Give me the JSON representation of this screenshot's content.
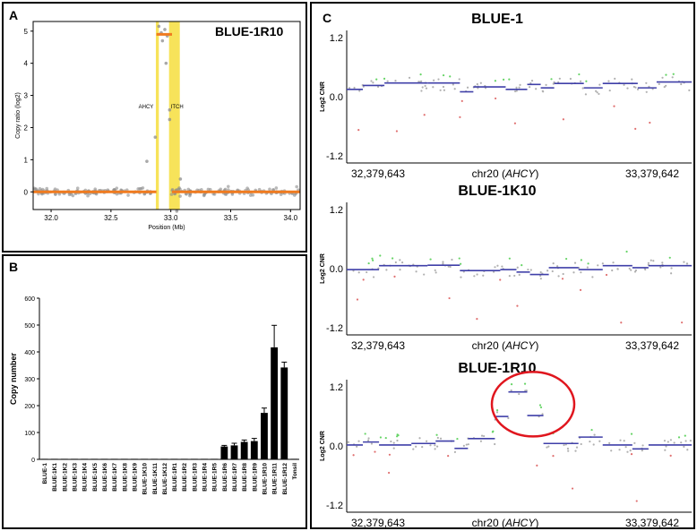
{
  "panels": {
    "a": {
      "letter": "A",
      "chart_data": {
        "type": "scatter",
        "title": "BLUE-1R10",
        "xlabel": "Position (Mb)",
        "ylabel": "Copy ratio (log2)",
        "xlim": [
          31.85,
          34.08
        ],
        "ylim": [
          -0.55,
          5.3
        ],
        "xticks": [
          "32.0",
          "32.5",
          "33.0",
          "33.5",
          "34.0"
        ],
        "yticks": [
          "0",
          "1",
          "2",
          "3",
          "4",
          "5"
        ],
        "gene_labels": [
          "AHCY",
          "ITCH"
        ],
        "highlight_regions": [
          [
            32.875,
            32.9
          ],
          [
            32.985,
            33.075
          ]
        ],
        "highlight_color": "#f7e35a",
        "segments": [
          {
            "x0": 31.85,
            "x1": 32.88,
            "y": 0.0
          },
          {
            "x0": 32.88,
            "x1": 33.01,
            "y": 4.9
          },
          {
            "x0": 33.01,
            "x1": 34.08,
            "y": 0.0
          }
        ],
        "segment_color": "#f07b1f",
        "point_color": "#8c8c8c",
        "points": [
          {
            "x": 32.9,
            "y": 5.15
          },
          {
            "x": 32.92,
            "y": 4.95
          },
          {
            "x": 32.95,
            "y": 5.05
          },
          {
            "x": 32.97,
            "y": 4.85
          },
          {
            "x": 32.93,
            "y": 4.7
          },
          {
            "x": 32.96,
            "y": 4.0
          },
          {
            "x": 32.99,
            "y": 2.55
          },
          {
            "x": 32.99,
            "y": 2.25
          },
          {
            "x": 32.8,
            "y": 0.95
          },
          {
            "x": 32.87,
            "y": 1.7
          },
          {
            "x": 33.08,
            "y": 0.4
          },
          {
            "x": 33.05,
            "y": -0.6
          }
        ]
      }
    },
    "b": {
      "letter": "B",
      "chart_data": {
        "type": "bar",
        "xlabel": "",
        "ylabel": "Copy number",
        "ylim": [
          0,
          600
        ],
        "yticks": [
          "0",
          "100",
          "200",
          "300",
          "400",
          "500",
          "600"
        ],
        "categories": [
          "BLUE-1",
          "BLUE-1K1",
          "BLUE-1K2",
          "BLUE-1K3",
          "BLUE-1K4",
          "BLUE-1K5",
          "BLUE-1K6",
          "BLUE-1K7",
          "BLUE-1K8",
          "BLUE-1K9",
          "BLUE-1K10",
          "BLUE-1K11",
          "BLUE-1K12",
          "BLUE-1R1",
          "BLUE-1R2",
          "BLUE-1R3",
          "BLUE-1R4",
          "BLUE-1R5",
          "BLUE-1R6",
          "BLUE-1R7",
          "BLUE-1R8",
          "BLUE-1R9",
          "BLUE-1R10",
          "BLUE-1R11",
          "BLUE-1R12",
          "Tonsil"
        ],
        "values": [
          2,
          2,
          2,
          2,
          2,
          2,
          2,
          2,
          2,
          2,
          2,
          2,
          2,
          2,
          2,
          2,
          2,
          2,
          48,
          52,
          65,
          68,
          173,
          417,
          342,
          2
        ],
        "errors": [
          0,
          0,
          0,
          0,
          0,
          0,
          0,
          0,
          0,
          0,
          0,
          0,
          0,
          0,
          0,
          0,
          0,
          0,
          4,
          8,
          7,
          10,
          18,
          82,
          20,
          0
        ],
        "bar_color": "#000000"
      }
    },
    "c": {
      "letter": "C",
      "tracks": [
        {
          "chart_data": {
            "type": "scatter",
            "title": "BLUE-1",
            "ylabel": "Log2 CNR",
            "ylim": [
              -1.35,
              1.35
            ],
            "yticks": [
              "1.2",
              "0.0",
              "-1.2"
            ],
            "x_left_label": "32,379,643",
            "x_mid_label": "chr20 (",
            "x_mid_gene": "AHCY",
            "x_mid_close": ")",
            "x_right_label": "33,379,642",
            "segments": [
              {
                "x0": 0.0,
                "x1": 0.06,
                "y": 0.15
              },
              {
                "x0": 0.06,
                "x1": 0.14,
                "y": 0.23
              },
              {
                "x0": 0.14,
                "x1": 0.3,
                "y": 0.28
              },
              {
                "x0": 0.3,
                "x1": 0.42,
                "y": 0.28
              },
              {
                "x0": 0.42,
                "x1": 0.47,
                "y": 0.1
              },
              {
                "x0": 0.47,
                "x1": 0.59,
                "y": 0.2
              },
              {
                "x0": 0.59,
                "x1": 0.67,
                "y": 0.15
              },
              {
                "x0": 0.67,
                "x1": 0.72,
                "y": 0.25
              },
              {
                "x0": 0.72,
                "x1": 0.77,
                "y": 0.18
              },
              {
                "x0": 0.77,
                "x1": 0.88,
                "y": 0.27
              },
              {
                "x0": 0.88,
                "x1": 0.95,
                "y": 0.18
              },
              {
                "x0": 0.95,
                "x1": 1.08,
                "y": 0.27
              },
              {
                "x0": 1.08,
                "x1": 1.15,
                "y": 0.18
              },
              {
                "x0": 1.15,
                "x1": 1.28,
                "y": 0.3
              }
            ],
            "highlight": false
          }
        },
        {
          "chart_data": {
            "type": "scatter",
            "title": "BLUE-1K10",
            "ylabel": "Log2 CNR",
            "ylim": [
              -1.35,
              1.35
            ],
            "yticks": [
              "1.2",
              "0.0",
              "-1.2"
            ],
            "x_left_label": "32,379,643",
            "x_mid_label": "chr20 (",
            "x_mid_gene": "AHCY",
            "x_mid_close": ")",
            "x_right_label": "33,379,642",
            "segments": [
              {
                "x0": 0.0,
                "x1": 0.12,
                "y": -0.02
              },
              {
                "x0": 0.12,
                "x1": 0.3,
                "y": 0.06
              },
              {
                "x0": 0.3,
                "x1": 0.42,
                "y": 0.07
              },
              {
                "x0": 0.42,
                "x1": 0.57,
                "y": -0.04
              },
              {
                "x0": 0.57,
                "x1": 0.63,
                "y": -0.02
              },
              {
                "x0": 0.63,
                "x1": 0.68,
                "y": -0.07
              },
              {
                "x0": 0.68,
                "x1": 0.75,
                "y": -0.12
              },
              {
                "x0": 0.75,
                "x1": 0.86,
                "y": 0.02
              },
              {
                "x0": 0.86,
                "x1": 0.95,
                "y": -0.02
              },
              {
                "x0": 0.95,
                "x1": 1.06,
                "y": 0.06
              },
              {
                "x0": 1.06,
                "x1": 1.12,
                "y": 0.02
              },
              {
                "x0": 1.12,
                "x1": 1.28,
                "y": 0.06
              }
            ],
            "highlight": false
          }
        },
        {
          "chart_data": {
            "type": "scatter",
            "title": "BLUE-1R10",
            "ylabel": "Log2 CNR",
            "ylim": [
              -1.35,
              1.35
            ],
            "yticks": [
              "1.2",
              "0.0",
              "-1.2"
            ],
            "x_left_label": "32,379,643",
            "x_mid_label": "chr20 (",
            "x_mid_gene": "AHCY",
            "x_mid_close": ")",
            "x_right_label": "33,379,642",
            "segments": [
              {
                "x0": 0.0,
                "x1": 0.06,
                "y": 0.02
              },
              {
                "x0": 0.06,
                "x1": 0.12,
                "y": 0.08
              },
              {
                "x0": 0.12,
                "x1": 0.24,
                "y": 0.02
              },
              {
                "x0": 0.24,
                "x1": 0.33,
                "y": 0.05
              },
              {
                "x0": 0.33,
                "x1": 0.4,
                "y": 0.1
              },
              {
                "x0": 0.4,
                "x1": 0.45,
                "y": -0.05
              },
              {
                "x0": 0.45,
                "x1": 0.55,
                "y": 0.15
              },
              {
                "x0": 0.55,
                "x1": 0.6,
                "y": 0.6
              },
              {
                "x0": 0.6,
                "x1": 0.67,
                "y": 1.1
              },
              {
                "x0": 0.67,
                "x1": 0.73,
                "y": 0.62
              },
              {
                "x0": 0.73,
                "x1": 0.86,
                "y": 0.05
              },
              {
                "x0": 0.86,
                "x1": 0.95,
                "y": 0.18
              },
              {
                "x0": 0.95,
                "x1": 1.06,
                "y": 0.02
              },
              {
                "x0": 1.06,
                "x1": 1.12,
                "y": -0.06
              },
              {
                "x0": 1.12,
                "x1": 1.28,
                "y": 0.02
              }
            ],
            "highlight": true
          }
        }
      ],
      "colors": {
        "segment": "#3f3fa8",
        "gain_point": "#66d466",
        "loss_point": "#e07070",
        "neutral_point": "#b0b0b0",
        "circle": "#e0161e"
      }
    }
  }
}
